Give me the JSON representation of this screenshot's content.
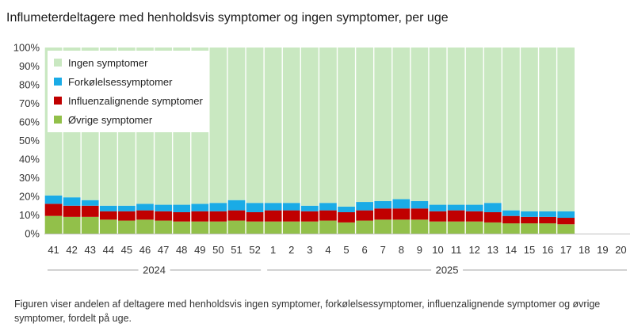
{
  "title": "Influmeterdeltagere med henholdsvis symptomer og ingen symptomer, per uge",
  "caption": "Figuren viser andelen af deltagere med henholdsvis ingen symptomer, forkølelsessymptomer, influenzalignende symptomer og øvrige symptomer, fordelt på uge.",
  "chart_data": {
    "type": "bar",
    "stacked": true,
    "categories": [
      "41",
      "42",
      "43",
      "44",
      "45",
      "46",
      "47",
      "48",
      "49",
      "50",
      "51",
      "52",
      "1",
      "2",
      "3",
      "4",
      "5",
      "6",
      "7",
      "8",
      "9",
      "10",
      "11",
      "12",
      "13",
      "14",
      "15",
      "16",
      "17",
      "18",
      "19",
      "20"
    ],
    "years": [
      {
        "label": "2024",
        "from": "41",
        "to": "52"
      },
      {
        "label": "2025",
        "from": "1",
        "to": "20"
      }
    ],
    "series": [
      {
        "name": "Øvrige symptomer",
        "color": "#92c04a",
        "values": [
          9.5,
          9,
          9,
          7.5,
          7,
          7.5,
          7,
          6.5,
          6.5,
          6.5,
          7,
          6.5,
          6.5,
          6.5,
          6.5,
          7,
          6,
          7,
          7.5,
          7.5,
          7.5,
          6.5,
          6.5,
          6.5,
          6,
          5.5,
          5.5,
          5.5,
          5,
          null,
          null,
          null
        ]
      },
      {
        "name": "Influenzalignende symptomer",
        "color": "#c00000",
        "values": [
          6.5,
          6,
          6,
          4.5,
          5,
          5,
          5,
          5,
          5.5,
          5.5,
          5.5,
          5,
          6,
          6,
          5.5,
          5.5,
          5.5,
          5.5,
          6,
          6,
          6,
          5.5,
          6,
          5.5,
          5.5,
          4,
          3.5,
          3.5,
          3.5,
          null,
          null,
          null
        ]
      },
      {
        "name": "Forkølelsessymptomer",
        "color": "#1aabe6",
        "values": [
          4.5,
          4.5,
          3,
          3,
          3,
          3.5,
          3.5,
          4,
          4,
          4.5,
          5.5,
          5,
          4,
          4,
          3,
          4,
          3,
          4.5,
          4,
          5,
          4,
          3.5,
          3,
          3.5,
          5,
          3,
          3,
          3,
          3.5,
          null,
          null,
          null
        ]
      },
      {
        "name": "Ingen symptomer",
        "color": "#c9e8c1",
        "values": [
          79.5,
          80.5,
          82,
          85,
          85,
          84,
          84.5,
          84.5,
          84,
          83.5,
          82,
          83.5,
          83.5,
          83.5,
          85,
          83.5,
          85.5,
          83,
          82.5,
          81.5,
          82.5,
          84.5,
          84.5,
          84.5,
          83.5,
          87.5,
          88,
          88,
          88,
          null,
          null,
          null
        ]
      }
    ],
    "legend_order": [
      "Ingen symptomer",
      "Forkølelsessymptomer",
      "Influenzalignende symptomer",
      "Øvrige symptomer"
    ],
    "yticks": [
      "0%",
      "10%",
      "20%",
      "30%",
      "40%",
      "50%",
      "60%",
      "70%",
      "80%",
      "90%",
      "100%"
    ],
    "ylim": [
      0,
      100
    ],
    "legend_position": "top-left",
    "grid": false
  }
}
